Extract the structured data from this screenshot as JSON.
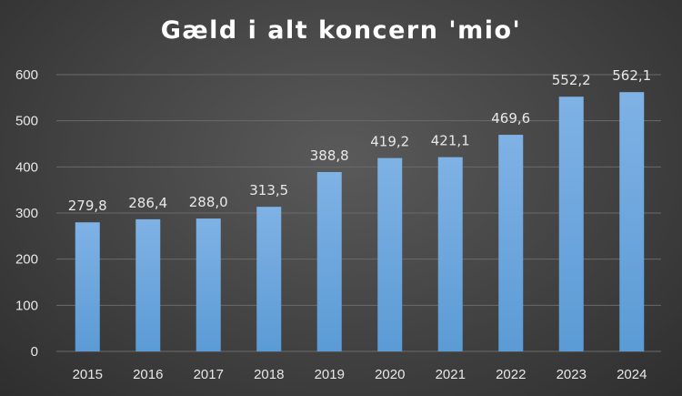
{
  "chart_data": {
    "type": "bar",
    "title": "Gæld i alt koncern 'mio'",
    "categories": [
      "2015",
      "2016",
      "2017",
      "2018",
      "2019",
      "2020",
      "2021",
      "2022",
      "2023",
      "2024"
    ],
    "values": [
      279.8,
      286.4,
      288.0,
      313.5,
      388.8,
      419.2,
      421.1,
      469.6,
      552.2,
      562.1
    ],
    "data_labels": [
      "279,8",
      "286,4",
      "288,0",
      "313,5",
      "388,8",
      "419,2",
      "421,1",
      "469,6",
      "552,2",
      "562,1"
    ],
    "y_ticks": [
      "0",
      "100",
      "200",
      "300",
      "400",
      "500",
      "600"
    ],
    "ylim": [
      0,
      600
    ],
    "grid": true,
    "legend": "none",
    "bar_color": "#5b9bd5",
    "bar_color_light": "#7fb2e5",
    "gridline_color": "#6a6a6a",
    "text_color": "#e8e8e8"
  }
}
